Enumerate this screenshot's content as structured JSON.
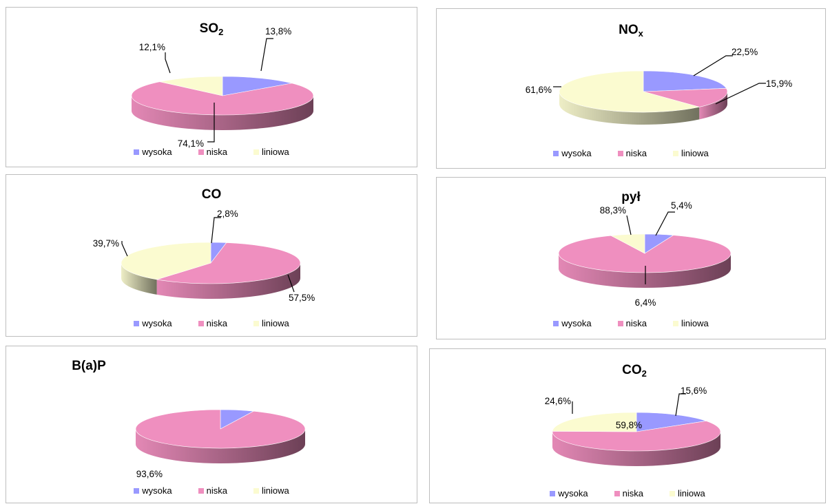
{
  "series_colors": {
    "wysoka": "#9999ff",
    "niska": "#ef8fbf",
    "liniowa": "#fbfbd0"
  },
  "legend": [
    "wysoka",
    "niska",
    "liniowa"
  ],
  "chart_data": [
    {
      "type": "pie",
      "title": "SO",
      "subscript": "2",
      "slices": [
        {
          "name": "wysoka",
          "value": 13.8,
          "label": "13,8%"
        },
        {
          "name": "niska",
          "value": 74.1,
          "label": "74,1%"
        },
        {
          "name": "liniowa",
          "value": 12.1,
          "label": "12,1%"
        }
      ]
    },
    {
      "type": "pie",
      "title": "NO",
      "subscript": "x",
      "slices": [
        {
          "name": "wysoka",
          "value": 22.5,
          "label": "22,5%"
        },
        {
          "name": "niska",
          "value": 15.9,
          "label": "15,9%"
        },
        {
          "name": "liniowa",
          "value": 61.6,
          "label": "61,6%"
        }
      ]
    },
    {
      "type": "pie",
      "title": "CO",
      "subscript": "",
      "slices": [
        {
          "name": "wysoka",
          "value": 2.8,
          "label": "2,8%"
        },
        {
          "name": "niska",
          "value": 57.5,
          "label": "57,5%"
        },
        {
          "name": "liniowa",
          "value": 39.7,
          "label": "39,7%"
        }
      ]
    },
    {
      "type": "pie",
      "title": "pył",
      "subscript": "",
      "slices": [
        {
          "name": "wysoka",
          "value": 5.4,
          "label": "5,4%"
        },
        {
          "name": "niska",
          "value": 88.3,
          "label": "88,3%"
        },
        {
          "name": "liniowa",
          "value": 6.4,
          "label": "6,4%"
        }
      ]
    },
    {
      "type": "pie",
      "title": "B(a)P",
      "subscript": "",
      "slices": [
        {
          "name": "wysoka",
          "value": 6.4,
          "label": ""
        },
        {
          "name": "niska",
          "value": 93.6,
          "label": "93,6%"
        },
        {
          "name": "liniowa",
          "value": 0,
          "label": ""
        }
      ]
    },
    {
      "type": "pie",
      "title": "CO",
      "subscript": "2",
      "slices": [
        {
          "name": "wysoka",
          "value": 15.6,
          "label": "15,6%"
        },
        {
          "name": "niska",
          "value": 59.8,
          "label": "59,8%"
        },
        {
          "name": "liniowa",
          "value": 24.6,
          "label": "24,6%"
        }
      ]
    }
  ]
}
